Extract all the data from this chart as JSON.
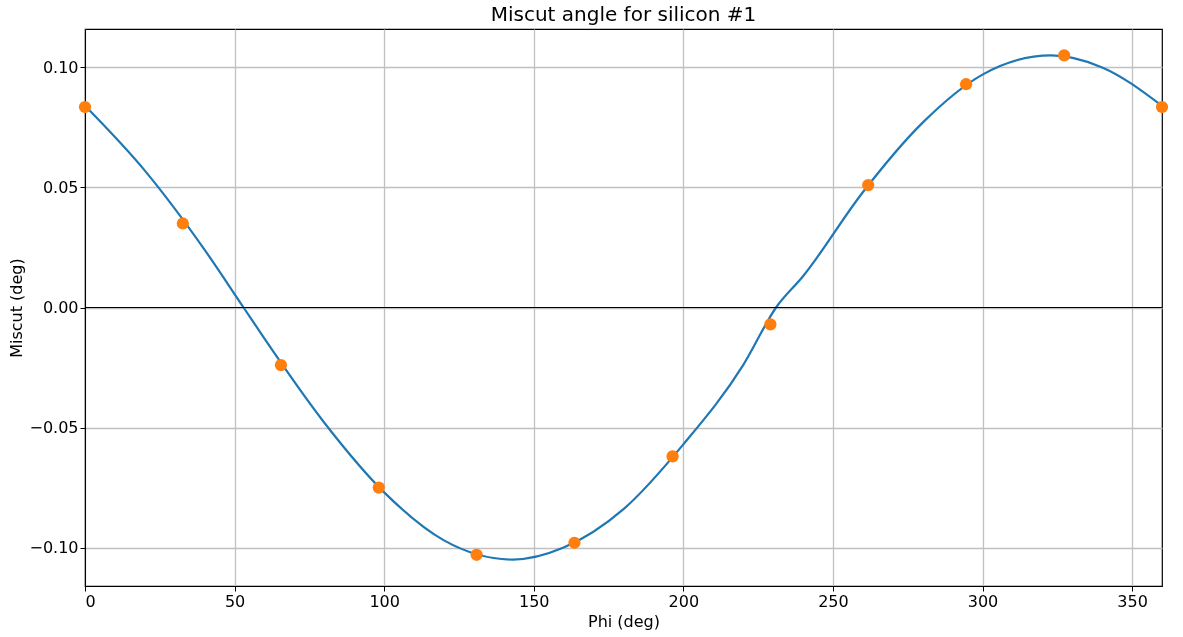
{
  "chart_data": {
    "type": "line",
    "title": "Miscut angle for silicon #1",
    "xlabel": "Phi (deg)",
    "ylabel": "Miscut (deg)",
    "xlim": [
      0,
      360
    ],
    "xticks": [
      0,
      50,
      100,
      150,
      200,
      250,
      300,
      350
    ],
    "ylim": [
      -0.116,
      0.116
    ],
    "yticks": [
      {
        "value": -0.1,
        "label": "−0.10"
      },
      {
        "value": -0.05,
        "label": "−0.05"
      },
      {
        "value": 0,
        "label": "0.00"
      },
      {
        "value": 0.05,
        "label": "0.05"
      },
      {
        "value": 0.1,
        "label": "0.10"
      }
    ],
    "grid": true,
    "ref_lines": [
      {
        "axis": "y",
        "value": 0,
        "color": "#000000"
      }
    ],
    "series": [
      {
        "color": "#1f77b4",
        "marker": "none",
        "x": [
          0,
          20,
          40,
          53,
          60,
          80,
          100,
          120,
          143,
          160,
          180,
          200,
          220,
          231,
          240,
          260,
          280,
          300,
          323,
          340,
          360
        ],
        "values": [
          0.084,
          0.057,
          0.024,
          0.0,
          -0.013,
          -0.048,
          -0.077,
          -0.097,
          -0.105,
          -0.1,
          -0.084,
          -0.057,
          -0.024,
          0.0,
          0.013,
          0.048,
          0.077,
          0.097,
          0.105,
          0.1,
          0.084
        ]
      },
      {
        "type": "scatter",
        "color": "#ff7f0e",
        "marker": "circle",
        "x": [
          0,
          32.7,
          65.5,
          98.2,
          130.9,
          163.6,
          196.4,
          229.1,
          261.8,
          294.5,
          327.3,
          360
        ],
        "values": [
          0.0835,
          0.035,
          -0.024,
          -0.075,
          -0.103,
          -0.098,
          -0.062,
          -0.007,
          0.051,
          0.093,
          0.105,
          0.0835
        ]
      }
    ]
  }
}
